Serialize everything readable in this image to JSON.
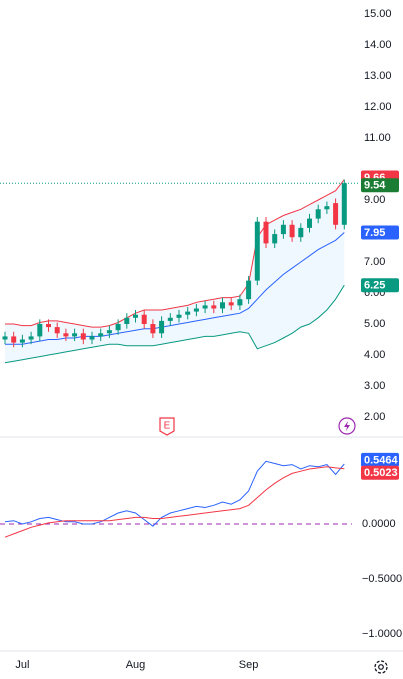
{
  "chart_data": [
    {
      "type": "candlestick",
      "up_color": "#089981",
      "down_color": "#f23645",
      "open": [
        4.5,
        4.6,
        4.4,
        4.5,
        4.6,
        5.0,
        4.9,
        4.7,
        4.6,
        4.7,
        4.5,
        4.6,
        4.7,
        4.8,
        5.0,
        5.2,
        5.3,
        5.0,
        4.7,
        5.1,
        5.2,
        5.3,
        5.4,
        5.5,
        5.6,
        5.5,
        5.7,
        5.6,
        5.8,
        6.4,
        8.3,
        7.6,
        7.9,
        8.2,
        7.8,
        8.1,
        8.4,
        8.7,
        8.9,
        8.2
      ],
      "high": [
        4.75,
        4.75,
        4.65,
        4.75,
        5.15,
        5.15,
        5.05,
        4.85,
        4.85,
        4.85,
        4.75,
        4.85,
        4.95,
        5.15,
        5.35,
        5.45,
        5.45,
        5.15,
        5.25,
        5.35,
        5.45,
        5.55,
        5.65,
        5.75,
        5.75,
        5.85,
        5.85,
        5.95,
        6.55,
        8.45,
        8.45,
        8.05,
        8.35,
        8.35,
        8.25,
        8.55,
        8.85,
        8.95,
        9.05,
        9.66
      ],
      "low": [
        4.35,
        4.25,
        4.25,
        4.35,
        4.45,
        4.75,
        4.55,
        4.45,
        4.45,
        4.35,
        4.35,
        4.45,
        4.55,
        4.65,
        4.85,
        5.05,
        4.85,
        4.55,
        4.55,
        4.95,
        5.05,
        5.15,
        5.25,
        5.35,
        5.35,
        5.35,
        5.45,
        5.45,
        5.65,
        6.25,
        7.45,
        7.45,
        7.75,
        7.65,
        7.65,
        7.95,
        8.25,
        8.55,
        8.05,
        8.05
      ],
      "close": [
        4.6,
        4.4,
        4.5,
        4.6,
        5.0,
        4.9,
        4.7,
        4.6,
        4.7,
        4.5,
        4.6,
        4.7,
        4.8,
        5.0,
        5.2,
        5.3,
        5.0,
        4.7,
        5.1,
        5.2,
        5.3,
        5.4,
        5.5,
        5.6,
        5.5,
        5.7,
        5.6,
        5.8,
        6.4,
        8.3,
        7.6,
        7.9,
        8.2,
        7.8,
        8.1,
        8.4,
        8.7,
        8.8,
        8.2,
        9.54
      ],
      "series": [
        {
          "color": "#f23645",
          "values": [
            5.0,
            5.0,
            4.95,
            4.95,
            5.05,
            5.1,
            5.1,
            5.05,
            5.0,
            4.95,
            4.9,
            4.9,
            4.95,
            5.05,
            5.2,
            5.35,
            5.45,
            5.45,
            5.45,
            5.5,
            5.55,
            5.6,
            5.7,
            5.75,
            5.8,
            5.85,
            5.85,
            5.9,
            6.3,
            7.8,
            8.2,
            8.35,
            8.5,
            8.6,
            8.7,
            8.85,
            9.0,
            9.15,
            9.3,
            9.66
          ]
        },
        {
          "color": "#2962ff",
          "values": [
            4.35,
            4.35,
            4.35,
            4.4,
            4.45,
            4.5,
            4.5,
            4.55,
            4.55,
            4.6,
            4.6,
            4.6,
            4.65,
            4.7,
            4.75,
            4.8,
            4.85,
            4.85,
            4.9,
            4.95,
            5.0,
            5.05,
            5.1,
            5.15,
            5.2,
            5.25,
            5.3,
            5.35,
            5.5,
            5.8,
            6.1,
            6.35,
            6.6,
            6.8,
            7.0,
            7.2,
            7.4,
            7.55,
            7.7,
            7.95
          ]
        },
        {
          "color": "#089981",
          "values": [
            3.75,
            3.8,
            3.85,
            3.9,
            3.95,
            4.0,
            4.05,
            4.1,
            4.15,
            4.2,
            4.25,
            4.3,
            4.35,
            4.35,
            4.3,
            4.3,
            4.3,
            4.3,
            4.35,
            4.4,
            4.45,
            4.5,
            4.55,
            4.6,
            4.6,
            4.65,
            4.7,
            4.75,
            4.7,
            4.2,
            4.3,
            4.4,
            4.55,
            4.7,
            4.9,
            5.0,
            5.2,
            5.45,
            5.8,
            6.25
          ]
        }
      ],
      "ylim": [
        1.42,
        15.45
      ],
      "yticks": [
        {
          "value": 2,
          "label": "2.00"
        },
        {
          "value": 3,
          "label": "3.00"
        },
        {
          "value": 4,
          "label": "4.00"
        },
        {
          "value": 5,
          "label": "5.00"
        },
        {
          "value": 6,
          "label": "6.00"
        },
        {
          "value": 7,
          "label": "7.00"
        },
        {
          "value": 9,
          "label": "9.00"
        },
        {
          "value": 11,
          "label": "11.00"
        },
        {
          "value": 12,
          "label": "12.00"
        },
        {
          "value": 13,
          "label": "13.00"
        },
        {
          "value": 14,
          "label": "14.00"
        },
        {
          "value": 15,
          "label": "15.00"
        }
      ],
      "event_label": "E"
    },
    {
      "type": "line",
      "categories": [
        null,
        null,
        "Jul",
        null,
        null,
        null,
        null,
        null,
        null,
        null,
        null,
        null,
        null,
        null,
        null,
        "Aug",
        null,
        null,
        null,
        null,
        null,
        null,
        null,
        null,
        null,
        null,
        null,
        null,
        "Sep",
        null,
        null,
        null,
        null,
        null,
        null,
        null,
        null,
        null,
        null,
        null
      ],
      "series": [
        {
          "color": "#2962ff",
          "values": [
            0.02,
            0.03,
            0.0,
            0.02,
            0.05,
            0.06,
            0.04,
            0.02,
            0.02,
            0.0,
            0.0,
            0.02,
            0.06,
            0.1,
            0.12,
            0.1,
            0.04,
            -0.02,
            0.06,
            0.1,
            0.12,
            0.14,
            0.16,
            0.15,
            0.17,
            0.2,
            0.18,
            0.22,
            0.3,
            0.48,
            0.57,
            0.55,
            0.53,
            0.54,
            0.5,
            0.53,
            0.52,
            0.54,
            0.45,
            0.5464
          ]
        },
        {
          "color": "#f23645",
          "values": [
            -0.12,
            -0.09,
            -0.06,
            -0.03,
            -0.01,
            0.01,
            0.02,
            0.03,
            0.03,
            0.03,
            0.03,
            0.03,
            0.03,
            0.04,
            0.05,
            0.06,
            0.06,
            0.05,
            0.05,
            0.06,
            0.07,
            0.08,
            0.09,
            0.1,
            0.11,
            0.12,
            0.13,
            0.14,
            0.17,
            0.24,
            0.31,
            0.37,
            0.42,
            0.46,
            0.48,
            0.5,
            0.51,
            0.52,
            0.51,
            0.5023
          ]
        }
      ],
      "zero_line_color": "#9c27b0",
      "ylim": [
        -1.145,
        0.764
      ],
      "yticks": [
        {
          "value": 0,
          "label": "0.0000"
        },
        {
          "value": -0.5,
          "label": "−0.5000"
        },
        {
          "value": -1,
          "label": "−1.0000"
        }
      ]
    }
  ]
}
